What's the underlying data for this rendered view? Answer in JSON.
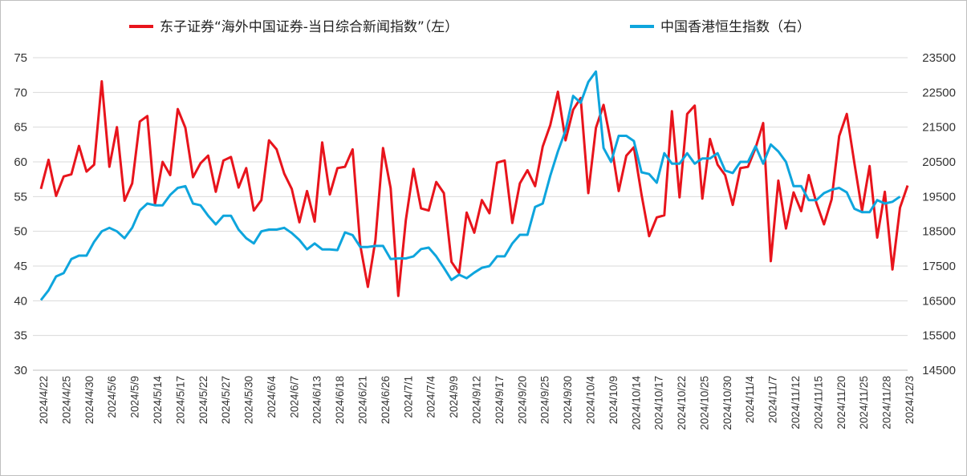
{
  "chart_data": {
    "type": "line",
    "title": "",
    "legend_position": "top",
    "grid": {
      "horizontal": true,
      "vertical": false
    },
    "y_left": {
      "ylim": [
        30,
        75
      ],
      "ticks": [
        30,
        35,
        40,
        45,
        50,
        55,
        60,
        65,
        70,
        75
      ]
    },
    "y_right": {
      "ylim": [
        14500,
        23500
      ],
      "ticks": [
        14500,
        15500,
        16500,
        17500,
        18500,
        19500,
        20500,
        21500,
        22500,
        23500
      ]
    },
    "x_tick_labels": [
      "2024/4/22",
      "2024/4/25",
      "2024/4/30",
      "2024/5/6",
      "2024/5/9",
      "2024/5/14",
      "2024/5/17",
      "2024/5/22",
      "2024/5/27",
      "2024/5/30",
      "2024/6/4",
      "2024/6/7",
      "2024/6/13",
      "2024/6/18",
      "2024/6/21",
      "2024/6/26",
      "2024/7/1",
      "2024/7/4",
      "2024/9/9",
      "2024/9/12",
      "2024/9/17",
      "2024/9/20",
      "2024/9/25",
      "2024/9/30",
      "2024/10/4",
      "2024/10/9",
      "2024/10/14",
      "2024/10/17",
      "2024/10/22",
      "2024/10/25",
      "2024/10/30",
      "2024/11/4",
      "2024/11/7",
      "2024/11/12",
      "2024/11/15",
      "2024/11/20",
      "2024/11/25",
      "2024/11/28",
      "2024/12/3"
    ],
    "series": [
      {
        "name": "东子证券“海外中国证券-当日综合新闻指数”（左）",
        "axis": "left",
        "color": "#e8141c",
        "values": [
          56.1,
          60.3,
          55.1,
          57.9,
          58.2,
          62.3,
          58.6,
          59.6,
          71.6,
          59.3,
          65.0,
          54.4,
          56.9,
          65.8,
          66.6,
          53.9,
          60.0,
          58.1,
          67.6,
          64.9,
          57.8,
          59.8,
          60.9,
          55.7,
          60.2,
          60.7,
          56.3,
          59.1,
          53.0,
          54.5,
          63.1,
          61.8,
          58.3,
          56.1,
          51.3,
          55.8,
          51.4,
          62.8,
          55.3,
          59.1,
          59.3,
          61.8,
          48.0,
          42.0,
          48.7,
          62.0,
          56.2,
          40.7,
          51.6,
          59.0,
          53.3,
          53.0,
          57.1,
          55.5,
          45.6,
          44.0,
          52.7,
          49.8,
          54.5,
          52.6,
          59.9,
          60.2,
          51.2,
          56.9,
          58.8,
          56.5,
          62.2,
          65.3,
          70.1,
          63.1,
          67.5,
          69.2,
          55.5,
          64.9,
          68.2,
          62.7,
          55.8,
          60.9,
          62.1,
          55.3,
          49.3,
          52.0,
          52.3,
          67.3,
          54.9,
          66.9,
          68.1,
          54.7,
          63.3,
          59.6,
          58.1,
          53.8,
          59.1,
          59.3,
          62.0,
          65.6,
          45.7,
          57.3,
          50.4,
          55.6,
          52.9,
          58.1,
          54.1,
          51.0,
          54.6,
          63.7,
          66.9,
          59.8,
          53.0,
          59.4,
          49.1,
          55.7,
          44.5,
          53.4,
          56.6
        ]
      },
      {
        "name": "中国香港恒生指数（右）",
        "axis": "right",
        "color": "#0ea5dd",
        "values": [
          16520,
          16800,
          17200,
          17300,
          17700,
          17800,
          17800,
          18200,
          18500,
          18600,
          18500,
          18300,
          18600,
          19100,
          19300,
          19250,
          19250,
          19550,
          19750,
          19800,
          19300,
          19250,
          18950,
          18700,
          18950,
          18950,
          18550,
          18300,
          18150,
          18500,
          18550,
          18550,
          18600,
          18450,
          18250,
          17980,
          18150,
          17980,
          17980,
          17960,
          18470,
          18390,
          18050,
          18050,
          18080,
          18080,
          17700,
          17720,
          17720,
          17780,
          17990,
          18030,
          17780,
          17450,
          17100,
          17250,
          17150,
          17310,
          17450,
          17500,
          17780,
          17780,
          18150,
          18400,
          18400,
          19200,
          19300,
          20100,
          20800,
          21400,
          22400,
          22200,
          22800,
          23100,
          20900,
          20500,
          21250,
          21250,
          21100,
          20200,
          20150,
          19900,
          20750,
          20450,
          20450,
          20750,
          20450,
          20600,
          20600,
          20750,
          20250,
          20180,
          20500,
          20500,
          20950,
          20450,
          21000,
          20800,
          20500,
          19800,
          19800,
          19400,
          19400,
          19600,
          19700,
          19750,
          19620,
          19150,
          19050,
          19050,
          19400,
          19300,
          19350,
          19500
        ]
      }
    ]
  }
}
